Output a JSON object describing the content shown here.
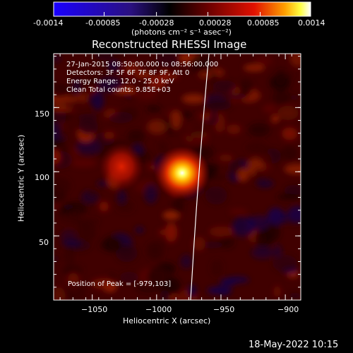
{
  "colorbar": {
    "ticks": [
      "-0.0014",
      "-0.00085",
      "-0.00028",
      "0.00028",
      "0.00085",
      "0.0014"
    ],
    "tick_values": [
      -0.0014,
      -0.00085,
      -0.00028,
      0.00028,
      0.00085,
      0.0014
    ],
    "units": "(photons cm⁻² s⁻¹ asec⁻²)",
    "colors": [
      "#1a00ff",
      "#2a1080",
      "#000000",
      "#6a0000",
      "#e01000",
      "#ffa000",
      "#ffff40",
      "#ffffff"
    ]
  },
  "plot": {
    "title": "Reconstructed RHESSI Image",
    "xlabel": "Heliocentric X (arcsec)",
    "ylabel": "Heliocentric Y (arcsec)",
    "x_ticks": [
      "−1050",
      "−1000",
      "−950",
      "−900"
    ],
    "y_ticks": [
      "150",
      "100",
      "50"
    ],
    "x_tick_values": [
      -1050,
      -1000,
      -950,
      -900
    ],
    "y_tick_values": [
      150,
      100,
      50
    ],
    "xlim": [
      -1080,
      -888
    ],
    "ylim": [
      0,
      192
    ]
  },
  "annotation": {
    "line1": "27-Jan-2015 08:50:00.000 to 08:56:00.000",
    "line2": "Detectors: 3F 5F 6F 7F 8F 9F, Att 0",
    "line3": "Energy Range: 12.0 - 25.0 keV",
    "line4": "Clean     Total counts: 9.85E+03",
    "peak": "Position of Peak = [-979,103]"
  },
  "timestamp": "18-May-2022 10:15",
  "chart_data": {
    "type": "heatmap",
    "title": "Reconstructed RHESSI Image",
    "xlabel": "Heliocentric X (arcsec)",
    "ylabel": "Heliocentric Y (arcsec)",
    "xlim": [
      -1080,
      -888
    ],
    "ylim": [
      0,
      192
    ],
    "colorbar_range": [
      -0.0014,
      0.0014
    ],
    "peak_position": [
      -979,
      103
    ],
    "sources": [
      {
        "x": -979,
        "y": 103,
        "relative_intensity": 1.0
      },
      {
        "x": -1027,
        "y": 111,
        "relative_intensity": 0.45
      }
    ],
    "limb": [
      [
        -960,
        192
      ],
      [
        -964,
        150
      ],
      [
        -968,
        110
      ],
      [
        -973,
        70
      ],
      [
        -978,
        30
      ],
      [
        -980,
        0
      ]
    ]
  }
}
